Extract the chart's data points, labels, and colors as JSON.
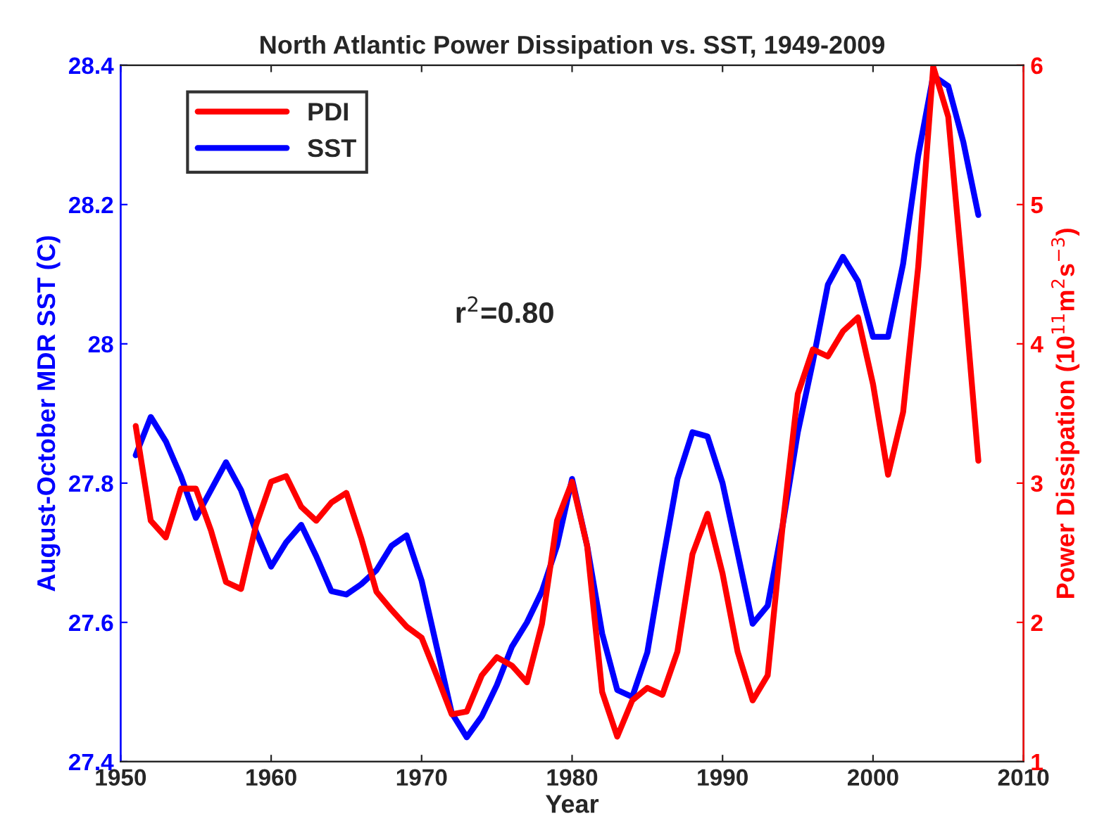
{
  "chart_data": {
    "type": "line",
    "title": "North Atlantic Power Dissipation vs. SST, 1949-2009",
    "xlabel": "Year",
    "ylabel": "August-October MDR SST (C)",
    "y2label": "Power Dissipation (10$^{11}$m$^{2}$s$^{−3}$)",
    "annotations": [
      "r$^{2}$=0.80"
    ],
    "x": [
      1951,
      1952,
      1953,
      1954,
      1955,
      1956,
      1957,
      1958,
      1959,
      1960,
      1961,
      1962,
      1963,
      1964,
      1965,
      1966,
      1967,
      1968,
      1969,
      1970,
      1971,
      1972,
      1973,
      1974,
      1975,
      1976,
      1977,
      1978,
      1979,
      1980,
      1981,
      1982,
      1983,
      1984,
      1985,
      1986,
      1987,
      1988,
      1989,
      1990,
      1991,
      1992,
      1993,
      1994,
      1995,
      1996,
      1997,
      1998,
      1999,
      2000,
      2001,
      2002,
      2003,
      2004,
      2005,
      2006,
      2007
    ],
    "series": [
      {
        "name": "PDI",
        "color": "#ff0000",
        "axis": "y2",
        "values": [
          3.41,
          2.73,
          2.61,
          2.96,
          2.96,
          2.66,
          2.29,
          2.24,
          2.7,
          3.01,
          3.05,
          2.83,
          2.73,
          2.86,
          2.93,
          2.6,
          2.22,
          2.09,
          1.97,
          1.89,
          1.62,
          1.34,
          1.36,
          1.62,
          1.75,
          1.69,
          1.57,
          1.99,
          2.73,
          3.01,
          2.55,
          1.5,
          1.18,
          1.44,
          1.53,
          1.48,
          1.79,
          2.49,
          2.78,
          2.35,
          1.79,
          1.44,
          1.62,
          2.7,
          3.64,
          3.96,
          3.91,
          4.09,
          4.19,
          3.71,
          3.06,
          3.51,
          4.55,
          5.99,
          5.63,
          4.44,
          3.16
        ]
      },
      {
        "name": "SST",
        "color": "#0000ff",
        "values": [
          27.84,
          27.895,
          27.86,
          27.81,
          27.75,
          27.79,
          27.83,
          27.79,
          27.73,
          27.68,
          27.715,
          27.74,
          27.695,
          27.645,
          27.64,
          27.655,
          27.675,
          27.71,
          27.725,
          27.66,
          27.565,
          27.47,
          27.435,
          27.465,
          27.51,
          27.565,
          27.6,
          27.645,
          27.71,
          27.806,
          27.71,
          27.584,
          27.503,
          27.493,
          27.557,
          27.685,
          27.806,
          27.873,
          27.867,
          27.8,
          27.7,
          27.598,
          27.624,
          27.74,
          27.873,
          27.974,
          28.085,
          28.125,
          28.09,
          28.01,
          28.01,
          28.115,
          28.27,
          28.385,
          28.37,
          28.29,
          28.185
        ]
      }
    ],
    "xlim": [
      1950,
      2010
    ],
    "xticks": [
      1950,
      1960,
      1970,
      1980,
      1990,
      2000,
      2010
    ],
    "ylim": [
      27.4,
      28.4
    ],
    "yticks": [
      27.4,
      27.6,
      27.8,
      28,
      28.2,
      28.4
    ],
    "y2lim": [
      1,
      6
    ],
    "y2ticks": [
      1,
      2,
      3,
      4,
      5,
      6
    ],
    "legend": "top left",
    "grid": false,
    "marker": "none",
    "line_style": "solid"
  }
}
